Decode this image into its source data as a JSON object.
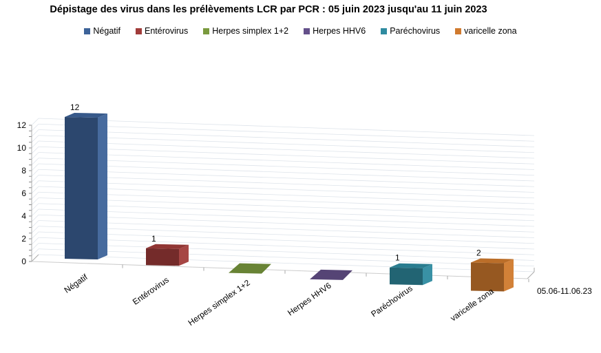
{
  "chart_data": {
    "type": "bar",
    "three_d": true,
    "title": "Dépistage des virus dans les prélèvements LCR par PCR : 05 juin 2023 jusqu'au   11 juin 2023",
    "categories": [
      "Négatif",
      "Entérovirus",
      "Herpes simplex 1+2",
      "Herpes HHV6",
      "Paréchovirus",
      "varicelle zona"
    ],
    "series_label": "05.06-11.06.23",
    "values": [
      12,
      1,
      0,
      0,
      1,
      2
    ],
    "data_labels": [
      "12",
      "1",
      "",
      "",
      "1",
      "2"
    ],
    "colors": [
      "#3d6399",
      "#a13c3a",
      "#7a9a3e",
      "#64508a",
      "#2f8ba0",
      "#d07a2e"
    ],
    "ylim": [
      0,
      12
    ],
    "yticks": [
      "0",
      "2",
      "4",
      "6",
      "8",
      "10",
      "12"
    ],
    "grid": true,
    "legend_position": "top",
    "legend": [
      "Négatif",
      "Entérovirus",
      "Herpes simplex 1+2",
      "Herpes HHV6",
      "Paréchovirus",
      "varicelle zona"
    ]
  }
}
